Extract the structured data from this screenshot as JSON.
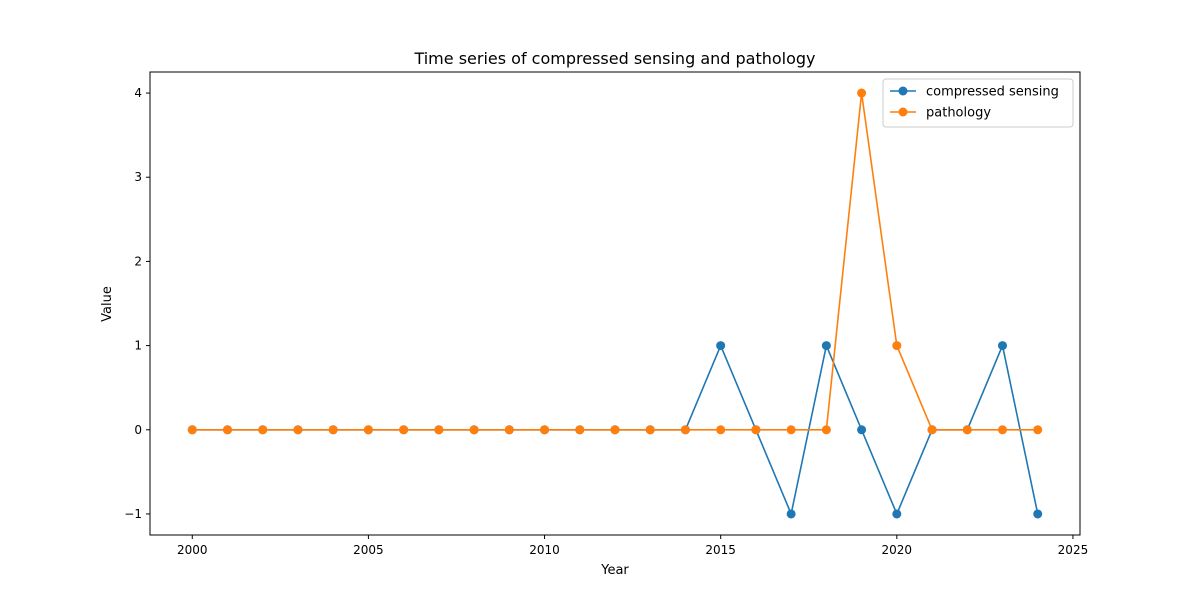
{
  "chart_data": {
    "type": "line",
    "title": "Time series of compressed sensing and pathology",
    "xlabel": "Year",
    "ylabel": "Value",
    "x": [
      2000,
      2001,
      2002,
      2003,
      2004,
      2005,
      2006,
      2007,
      2008,
      2009,
      2010,
      2011,
      2012,
      2013,
      2014,
      2015,
      2016,
      2017,
      2018,
      2019,
      2020,
      2021,
      2022,
      2023,
      2024
    ],
    "series": [
      {
        "name": "compressed sensing",
        "color": "#1f77b4",
        "values": [
          0,
          0,
          0,
          0,
          0,
          0,
          0,
          0,
          0,
          0,
          0,
          0,
          0,
          0,
          0,
          1,
          0,
          -1,
          1,
          0,
          -1,
          0,
          0,
          1,
          -1
        ]
      },
      {
        "name": "pathology",
        "color": "#ff7f0e",
        "values": [
          0,
          0,
          0,
          0,
          0,
          0,
          0,
          0,
          0,
          0,
          0,
          0,
          0,
          0,
          0,
          0,
          0,
          0,
          0,
          4,
          1,
          0,
          0,
          0,
          0
        ]
      }
    ],
    "xlim": [
      1998.8,
      2025.2
    ],
    "ylim": [
      -1.25,
      4.25
    ],
    "xticks": [
      "2000",
      "2005",
      "2010",
      "2015",
      "2020",
      "2025"
    ],
    "yticks": [
      "−1",
      "0",
      "1",
      "2",
      "3",
      "4"
    ],
    "grid": false,
    "legend_position": "top-right"
  }
}
